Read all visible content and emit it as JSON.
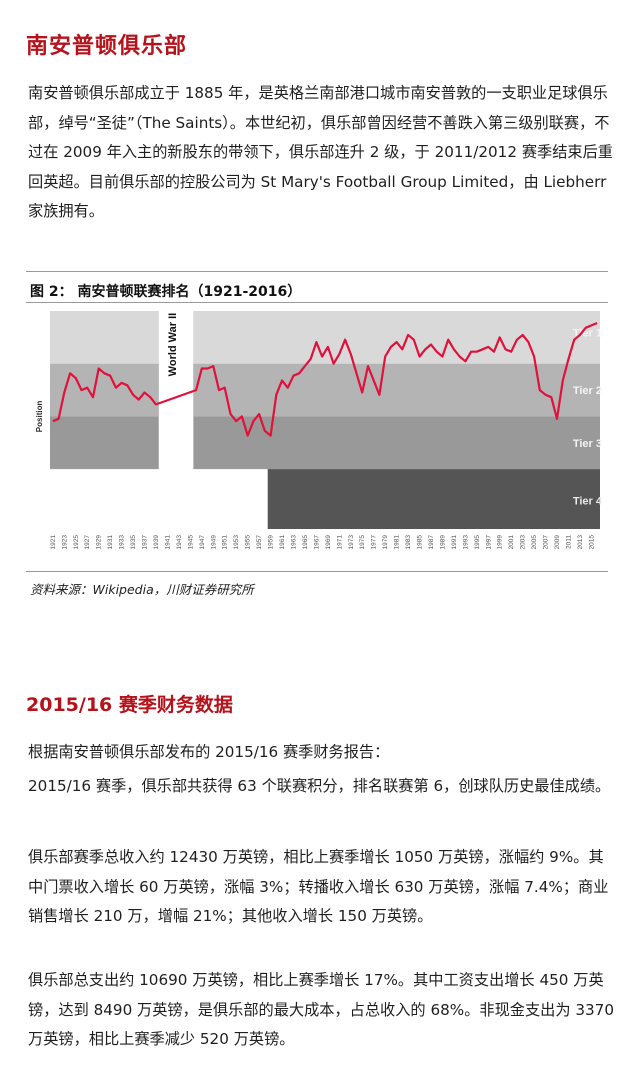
{
  "title": "南安普顿俱乐部",
  "intro": "南安普顿俱乐部成立于 1885 年，是英格兰南部港口城市南安普敦的一支职业足球俱乐部，绰号“圣徒”（The Saints）。本世纪初，俱乐部曾因经营不善跌入第三级别联赛，不过在 2009 年入主的新股东的带领下，俱乐部连升 2 级，于 2011/2012 赛季结束后重回英超。目前俱乐部的控股公司为 St Mary's Football Group Limited，由 Liebherr 家族拥有。",
  "figure": {
    "title": "图 2：  南安普顿联赛排名（1921-2016）",
    "source": "资料来源：Wikipedia，川财证券研究所"
  },
  "section2_title": "2015/16 赛季财务数据",
  "p2": "根据南安普顿俱乐部发布的 2015/16 赛季财务报告：",
  "p3": "2015/16 赛季，俱乐部共获得 63 个联赛积分，排名联赛第 6，创球队历史最佳成绩。",
  "p4": "俱乐部赛季总收入约 12430 万英镑，相比上赛季增长 1050 万英镑，涨幅约 9%。其中门票收入增长 60 万英镑，涨幅 3%；转播收入增长 630 万英镑，涨幅 7.4%；商业销售增长 210 万，增幅 21%；其他收入增长 150 万英镑。",
  "p5": "俱乐部总支出约 10690 万英镑，相比上赛季增长 17%。其中工资支出增长 450 万英镑，达到 8490 万英镑，是俱乐部的最大成本，占总收入的 68%。非现金支出为 3370 万英镑，相比上赛季减少 520 万英镑。",
  "chart_data": {
    "type": "line",
    "title": "",
    "ylabel": "Position",
    "xlabel": "",
    "x_ticks": [
      "1921",
      "1923",
      "1925",
      "1927",
      "1929",
      "1931",
      "1933",
      "1935",
      "1937",
      "1939",
      "1941",
      "1943",
      "1945",
      "1947",
      "1949",
      "1951",
      "1953",
      "1955",
      "1957",
      "1959",
      "1961",
      "1963",
      "1965",
      "1967",
      "1969",
      "1971",
      "1973",
      "1975",
      "1977",
      "1979",
      "1981",
      "1983",
      "1985",
      "1987",
      "1989",
      "1991",
      "1993",
      "1995",
      "1997",
      "1999",
      "2001",
      "2003",
      "2005",
      "2007",
      "2009",
      "2011",
      "2013",
      "2015"
    ],
    "annotations": [
      "World War II"
    ],
    "tiers": [
      "Tier 1",
      "Tier 2",
      "Tier 3",
      "Tier 4"
    ],
    "y_scale": "overall league position, 1 = top of Tier 1 (reversed)",
    "ylim": [
      92,
      1
    ],
    "colors": {
      "line": "#e0113b",
      "tier1": "#d9d9d9",
      "tier2": "#b4b4b4",
      "tier3": "#999999",
      "tier4": "#555555"
    },
    "series": [
      {
        "x": [
          1921,
          1922,
          1923,
          1924,
          1925,
          1926,
          1927,
          1928,
          1929,
          1930,
          1931,
          1932,
          1933,
          1934,
          1935,
          1936,
          1937,
          1938,
          1939,
          1946,
          1947,
          1948,
          1949,
          1950,
          1951,
          1952,
          1953,
          1954,
          1955,
          1956,
          1957,
          1958,
          1959,
          1960,
          1961,
          1962,
          1963,
          1964,
          1965,
          1966,
          1967,
          1968,
          1969,
          1970,
          1971,
          1972,
          1973,
          1974,
          1975,
          1976,
          1977,
          1978,
          1979,
          1980,
          1981,
          1982,
          1983,
          1984,
          1985,
          1986,
          1987,
          1988,
          1989,
          1990,
          1991,
          1992,
          1993,
          1994,
          1995,
          1996,
          1997,
          1998,
          1999,
          2000,
          2001,
          2002,
          2003,
          2004,
          2005,
          2006,
          2007,
          2008,
          2009,
          2010,
          2011,
          2012,
          2013,
          2014,
          2015,
          2016
        ],
        "y": [
          47,
          46,
          35,
          27,
          29,
          34,
          33,
          37,
          25,
          27,
          28,
          33,
          31,
          32,
          36,
          38,
          35,
          37,
          40,
          34,
          25,
          25,
          24,
          34,
          33,
          44,
          47,
          45,
          53,
          47,
          44,
          51,
          53,
          36,
          30,
          33,
          28,
          27,
          24,
          21,
          14,
          20,
          16,
          23,
          19,
          13,
          19,
          27,
          35,
          24,
          30,
          36,
          20,
          16,
          14,
          17,
          11,
          13,
          20,
          17,
          15,
          18,
          20,
          13,
          17,
          20,
          22,
          18,
          18,
          17,
          16,
          18,
          12,
          17,
          18,
          13,
          11,
          14,
          20,
          34,
          36,
          37,
          46,
          30,
          21,
          13,
          11,
          8,
          7,
          6
        ]
      }
    ]
  }
}
